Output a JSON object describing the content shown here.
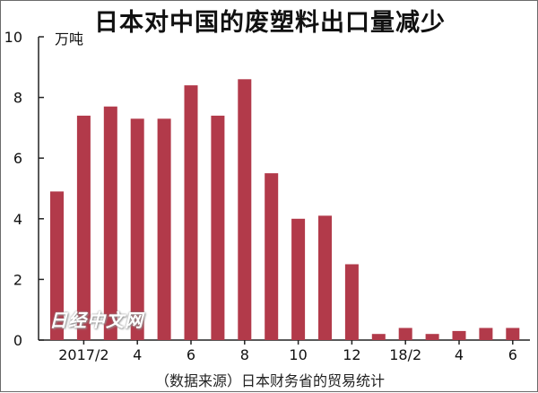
{
  "chart_data": {
    "type": "bar",
    "title": "日本对中国的废塑料出口量减少",
    "ylabel": "万吨",
    "xlabel": "",
    "ylim": [
      0,
      10
    ],
    "yticks": [
      0,
      2,
      4,
      6,
      8,
      10
    ],
    "categories": [
      "2017/1",
      "2017/2",
      "2017/3",
      "2017/4",
      "2017/5",
      "2017/6",
      "2017/7",
      "2017/8",
      "2017/9",
      "2017/10",
      "2017/11",
      "2017/12",
      "2018/1",
      "2018/2",
      "2018/3",
      "2018/4",
      "2018/5",
      "2018/6"
    ],
    "xtick_labels": [
      "",
      "2017/2",
      "",
      "4",
      "",
      "6",
      "",
      "8",
      "",
      "10",
      "",
      "12",
      "",
      "18/2",
      "",
      "4",
      "",
      "6"
    ],
    "values": [
      4.9,
      7.4,
      7.7,
      7.3,
      7.3,
      8.4,
      7.4,
      8.6,
      5.5,
      4.0,
      4.1,
      2.5,
      0.2,
      0.4,
      0.2,
      0.3,
      0.4,
      0.4
    ],
    "bar_color": "#b23a4a",
    "grid": false,
    "legend": "none"
  },
  "source": "（数据来源）日本财务省的贸易统计",
  "watermark": "日经中文网"
}
